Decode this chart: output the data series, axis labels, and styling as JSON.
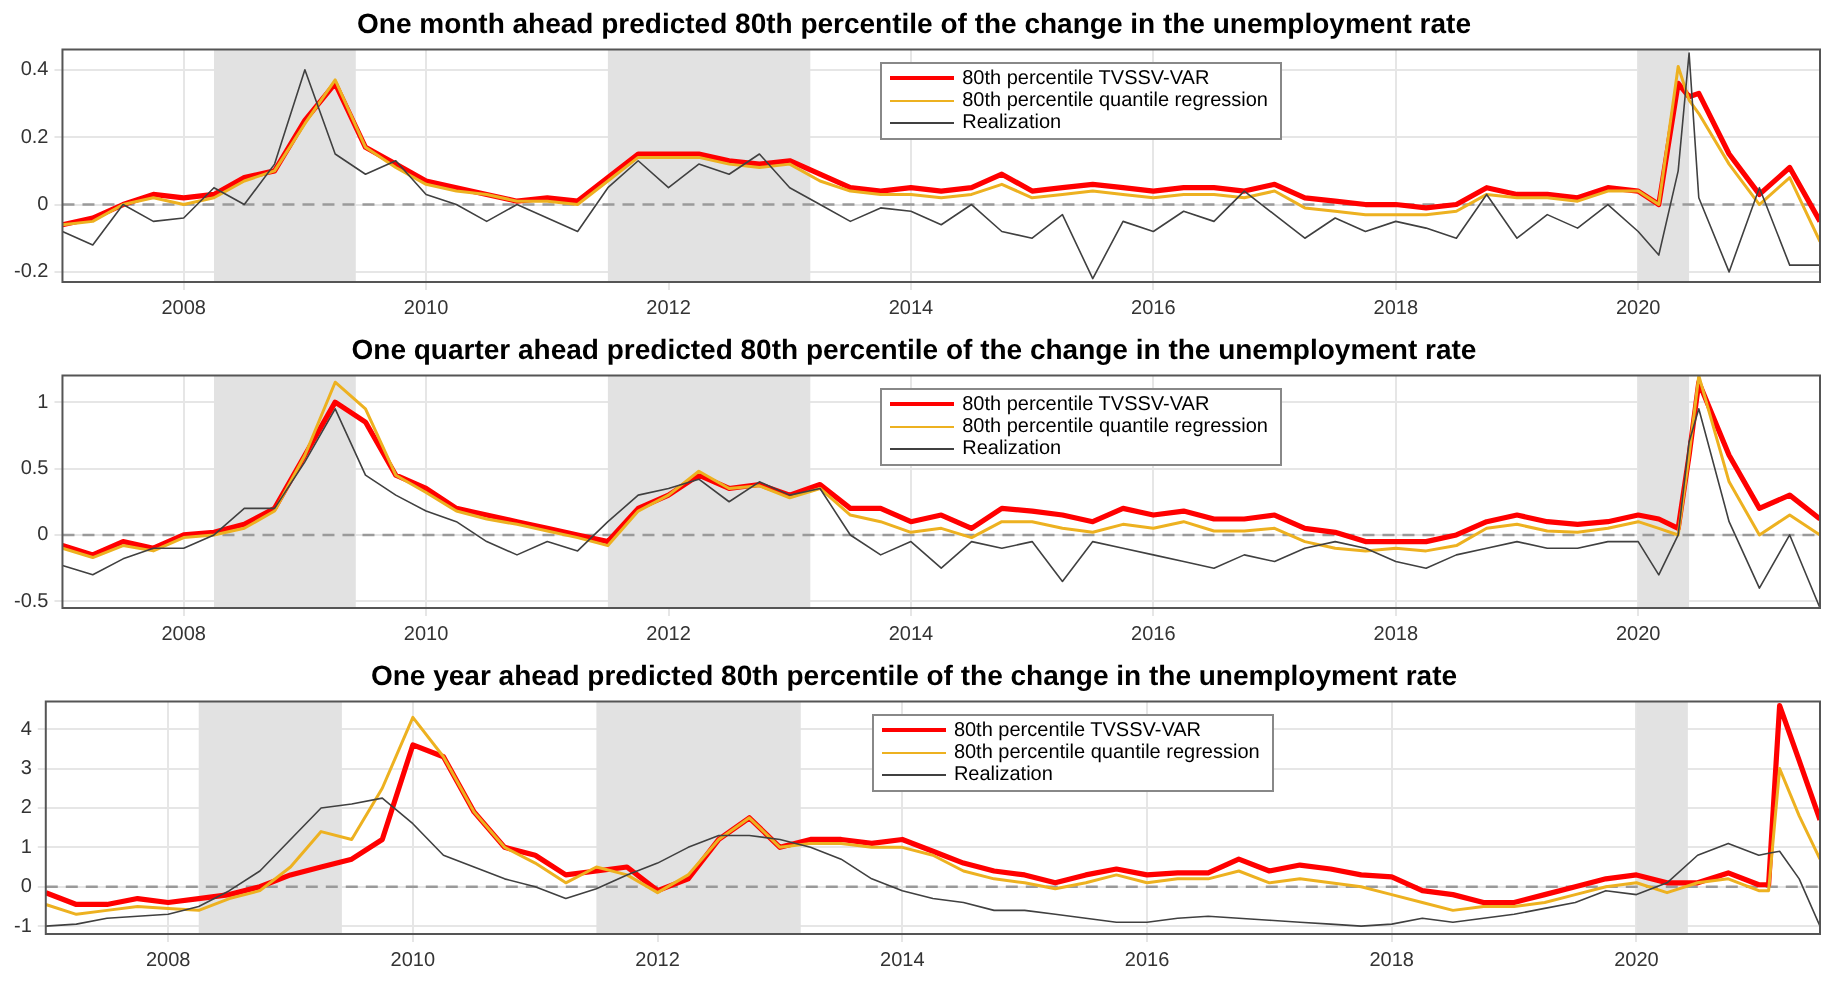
{
  "chart_data": [
    {
      "type": "line",
      "title": "One month ahead predicted 80th percentile of the change in the unemployment rate",
      "x": [
        2007,
        2007.25,
        2007.5,
        2007.75,
        2008,
        2008.25,
        2008.5,
        2008.75,
        2009,
        2009.25,
        2009.5,
        2009.75,
        2010,
        2010.25,
        2010.5,
        2010.75,
        2011,
        2011.25,
        2011.5,
        2011.75,
        2012,
        2012.25,
        2012.5,
        2012.75,
        2013,
        2013.25,
        2013.5,
        2013.75,
        2014,
        2014.25,
        2014.5,
        2014.75,
        2015,
        2015.25,
        2015.5,
        2015.75,
        2016,
        2016.25,
        2016.5,
        2016.75,
        2017,
        2017.25,
        2017.5,
        2017.75,
        2018,
        2018.25,
        2018.5,
        2018.75,
        2019,
        2019.25,
        2019.5,
        2019.75,
        2020,
        2020.17,
        2020.33,
        2020.42,
        2020.5,
        2020.75,
        2021,
        2021.25,
        2021.5
      ],
      "xlim": [
        2007,
        2021.5
      ],
      "xticks": [
        2008,
        2010,
        2012,
        2014,
        2016,
        2018,
        2020
      ],
      "ylim": [
        -0.23,
        0.46
      ],
      "yticks": [
        -0.2,
        0,
        0.2,
        0.4
      ],
      "grid": true,
      "legend": "top",
      "bands": [
        {
          "axis": "x",
          "from": 2008.25,
          "to": 2009.42
        },
        {
          "axis": "x",
          "from": 2011.5,
          "to": 2013.17
        },
        {
          "axis": "x",
          "from": 2020,
          "to": 2020.42
        }
      ],
      "ref_lines": [
        {
          "axis": "y",
          "value": 0,
          "line_style": "dashed"
        }
      ],
      "series": [
        {
          "name": "80th percentile TVSSV-VAR",
          "color": "#ff0000",
          "values": [
            -0.06,
            -0.04,
            0,
            0.03,
            0.02,
            0.03,
            0.08,
            0.1,
            0.25,
            0.36,
            0.17,
            0.12,
            0.07,
            0.05,
            0.03,
            0.01,
            0.02,
            0.01,
            0.08,
            0.15,
            0.15,
            0.15,
            0.13,
            0.12,
            0.13,
            0.09,
            0.05,
            0.04,
            0.05,
            0.04,
            0.05,
            0.09,
            0.04,
            0.05,
            0.06,
            0.05,
            0.04,
            0.05,
            0.05,
            0.04,
            0.06,
            0.02,
            0.01,
            0,
            0,
            -0.01,
            0,
            0.05,
            0.03,
            0.03,
            0.02,
            0.05,
            0.04,
            0,
            0.36,
            0.32,
            0.33,
            0.15,
            0.03,
            0.11,
            -0.05
          ]
        },
        {
          "name": "80th percentile quantile regression",
          "color": "#edb120",
          "values": [
            -0.06,
            -0.05,
            0,
            0.02,
            0,
            0.02,
            0.07,
            0.1,
            0.24,
            0.37,
            0.17,
            0.11,
            0.06,
            0.04,
            0.03,
            0.01,
            0.01,
            0,
            0.07,
            0.14,
            0.14,
            0.14,
            0.12,
            0.11,
            0.12,
            0.07,
            0.04,
            0.03,
            0.03,
            0.02,
            0.03,
            0.06,
            0.02,
            0.03,
            0.04,
            0.03,
            0.02,
            0.03,
            0.03,
            0.02,
            0.04,
            -0.01,
            -0.02,
            -0.03,
            -0.03,
            -0.03,
            -0.02,
            0.03,
            0.02,
            0.02,
            0.01,
            0.04,
            0.04,
            0,
            0.41,
            0.31,
            0.27,
            0.12,
            0,
            0.08,
            -0.11
          ]
        },
        {
          "name": "Realization",
          "color": "#404040",
          "values": [
            -0.08,
            -0.12,
            0,
            -0.05,
            -0.04,
            0.05,
            0,
            0.12,
            0.4,
            0.15,
            0.09,
            0.13,
            0.03,
            0,
            -0.05,
            0,
            -0.04,
            -0.08,
            0.05,
            0.13,
            0.05,
            0.12,
            0.09,
            0.15,
            0.05,
            0,
            -0.05,
            -0.01,
            -0.02,
            -0.06,
            0,
            -0.08,
            -0.1,
            -0.03,
            -0.22,
            -0.05,
            -0.08,
            -0.02,
            -0.05,
            0.04,
            -0.03,
            -0.1,
            -0.04,
            -0.08,
            -0.05,
            -0.07,
            -0.1,
            0.03,
            -0.1,
            -0.03,
            -0.07,
            0,
            -0.08,
            -0.15,
            0.1,
            0.45,
            0.02,
            -0.2,
            0.05,
            -0.18,
            -0.18
          ]
        }
      ]
    },
    {
      "type": "line",
      "title": "One quarter ahead predicted 80th percentile of the change in the unemployment rate",
      "x": [
        2007,
        2007.25,
        2007.5,
        2007.75,
        2008,
        2008.25,
        2008.5,
        2008.75,
        2009,
        2009.25,
        2009.5,
        2009.75,
        2010,
        2010.25,
        2010.5,
        2010.75,
        2011,
        2011.25,
        2011.5,
        2011.75,
        2012,
        2012.25,
        2012.5,
        2012.75,
        2013,
        2013.25,
        2013.5,
        2013.75,
        2014,
        2014.25,
        2014.5,
        2014.75,
        2015,
        2015.25,
        2015.5,
        2015.75,
        2016,
        2016.25,
        2016.5,
        2016.75,
        2017,
        2017.25,
        2017.5,
        2017.75,
        2018,
        2018.25,
        2018.5,
        2018.75,
        2019,
        2019.25,
        2019.5,
        2019.75,
        2020,
        2020.17,
        2020.33,
        2020.42,
        2020.5,
        2020.75,
        2021,
        2021.25,
        2021.5
      ],
      "xlim": [
        2007,
        2021.5
      ],
      "xticks": [
        2008,
        2010,
        2012,
        2014,
        2016,
        2018,
        2020
      ],
      "ylim": [
        -0.55,
        1.2
      ],
      "yticks": [
        -0.5,
        0,
        0.5,
        1
      ],
      "grid": true,
      "legend": "top",
      "bands": [
        {
          "axis": "x",
          "from": 2008.25,
          "to": 2009.42
        },
        {
          "axis": "x",
          "from": 2011.5,
          "to": 2013.17
        },
        {
          "axis": "x",
          "from": 2020,
          "to": 2020.42
        }
      ],
      "ref_lines": [
        {
          "axis": "y",
          "value": 0,
          "line_style": "dashed"
        }
      ],
      "series": [
        {
          "name": "80th percentile TVSSV-VAR",
          "color": "#ff0000",
          "values": [
            -0.08,
            -0.15,
            -0.05,
            -0.1,
            0,
            0.02,
            0.08,
            0.2,
            0.6,
            1,
            0.85,
            0.45,
            0.35,
            0.2,
            0.15,
            0.1,
            0.05,
            0,
            -0.05,
            0.2,
            0.3,
            0.45,
            0.35,
            0.38,
            0.3,
            0.38,
            0.2,
            0.2,
            0.1,
            0.15,
            0.05,
            0.2,
            0.18,
            0.15,
            0.1,
            0.2,
            0.15,
            0.18,
            0.12,
            0.12,
            0.15,
            0.05,
            0.02,
            -0.05,
            -0.05,
            -0.05,
            0,
            0.1,
            0.15,
            0.1,
            0.08,
            0.1,
            0.15,
            0.12,
            0.05,
            0.6,
            1.15,
            0.6,
            0.2,
            0.3,
            0.12
          ]
        },
        {
          "name": "80th percentile quantile regression",
          "color": "#edb120",
          "values": [
            -0.1,
            -0.17,
            -0.08,
            -0.12,
            -0.02,
            0,
            0.05,
            0.18,
            0.6,
            1.15,
            0.95,
            0.45,
            0.32,
            0.18,
            0.12,
            0.08,
            0.03,
            -0.02,
            -0.08,
            0.18,
            0.3,
            0.48,
            0.35,
            0.37,
            0.28,
            0.35,
            0.15,
            0.1,
            0.02,
            0.05,
            -0.02,
            0.1,
            0.1,
            0.05,
            0.02,
            0.08,
            0.05,
            0.1,
            0.03,
            0.03,
            0.05,
            -0.05,
            -0.1,
            -0.12,
            -0.1,
            -0.12,
            -0.08,
            0.05,
            0.08,
            0.03,
            0.02,
            0.05,
            0.1,
            0.05,
            0,
            0.6,
            1.2,
            0.4,
            0,
            0.15,
            0
          ]
        },
        {
          "name": "Realization",
          "color": "#404040",
          "values": [
            -0.23,
            -0.3,
            -0.18,
            -0.1,
            -0.1,
            0,
            0.2,
            0.2,
            0.55,
            0.95,
            0.45,
            0.3,
            0.18,
            0.1,
            -0.05,
            -0.15,
            -0.05,
            -0.12,
            0.1,
            0.3,
            0.35,
            0.42,
            0.25,
            0.4,
            0.3,
            0.35,
            0,
            -0.15,
            -0.05,
            -0.25,
            -0.05,
            -0.1,
            -0.05,
            -0.35,
            -0.05,
            -0.1,
            -0.15,
            -0.2,
            -0.25,
            -0.15,
            -0.2,
            -0.1,
            -0.05,
            -0.1,
            -0.2,
            -0.25,
            -0.15,
            -0.1,
            -0.05,
            -0.1,
            -0.1,
            -0.05,
            -0.05,
            -0.3,
            0,
            0.7,
            0.95,
            0.1,
            -0.4,
            0,
            -0.55
          ]
        }
      ]
    },
    {
      "type": "line",
      "title": "One year ahead predicted 80th percentile of the change in the unemployment rate",
      "x": [
        2007,
        2007.25,
        2007.5,
        2007.75,
        2008,
        2008.25,
        2008.5,
        2008.75,
        2009,
        2009.25,
        2009.5,
        2009.75,
        2010,
        2010.25,
        2010.5,
        2010.75,
        2011,
        2011.25,
        2011.5,
        2011.75,
        2012,
        2012.25,
        2012.5,
        2012.75,
        2013,
        2013.25,
        2013.5,
        2013.75,
        2014,
        2014.25,
        2014.5,
        2014.75,
        2015,
        2015.25,
        2015.5,
        2015.75,
        2016,
        2016.25,
        2016.5,
        2016.75,
        2017,
        2017.25,
        2017.5,
        2017.75,
        2018,
        2018.25,
        2018.5,
        2018.75,
        2019,
        2019.25,
        2019.5,
        2019.75,
        2020,
        2020.25,
        2020.5,
        2020.75,
        2021,
        2021.08,
        2021.17,
        2021.33,
        2021.5
      ],
      "xlim": [
        2007,
        2021.5
      ],
      "xticks": [
        2008,
        2010,
        2012,
        2014,
        2016,
        2018,
        2020
      ],
      "ylim": [
        -1.2,
        4.7
      ],
      "yticks": [
        -1,
        0,
        1,
        2,
        3,
        4
      ],
      "grid": true,
      "legend": "top",
      "bands": [
        {
          "axis": "x",
          "from": 2008.25,
          "to": 2009.42
        },
        {
          "axis": "x",
          "from": 2011.5,
          "to": 2013.17
        },
        {
          "axis": "x",
          "from": 2020,
          "to": 2020.42
        }
      ],
      "ref_lines": [
        {
          "axis": "y",
          "value": 0,
          "line_style": "dashed"
        }
      ],
      "series": [
        {
          "name": "80th percentile TVSSV-VAR",
          "color": "#ff0000",
          "values": [
            -0.15,
            -0.45,
            -0.45,
            -0.3,
            -0.4,
            -0.3,
            -0.2,
            0,
            0.3,
            0.5,
            0.7,
            1.2,
            3.6,
            3.3,
            1.9,
            1,
            0.8,
            0.3,
            0.4,
            0.5,
            -0.1,
            0.2,
            1.2,
            1.75,
            1,
            1.2,
            1.2,
            1.1,
            1.2,
            0.9,
            0.6,
            0.4,
            0.3,
            0.1,
            0.3,
            0.45,
            0.3,
            0.35,
            0.35,
            0.7,
            0.4,
            0.55,
            0.45,
            0.3,
            0.25,
            -0.1,
            -0.2,
            -0.4,
            -0.4,
            -0.2,
            0,
            0.2,
            0.3,
            0.1,
            0.1,
            0.35,
            0.05,
            0.05,
            4.6,
            3.2,
            1.7
          ]
        },
        {
          "name": "80th percentile quantile regression",
          "color": "#edb120",
          "values": [
            -0.45,
            -0.7,
            -0.6,
            -0.5,
            -0.55,
            -0.6,
            -0.3,
            -0.1,
            0.5,
            1.4,
            1.2,
            2.5,
            4.3,
            3.3,
            1.9,
            1,
            0.6,
            0.1,
            0.5,
            0.3,
            -0.15,
            0.3,
            1.2,
            1.75,
            1,
            1.1,
            1.1,
            1,
            1,
            0.8,
            0.4,
            0.2,
            0.1,
            -0.05,
            0.1,
            0.3,
            0.1,
            0.2,
            0.2,
            0.4,
            0.1,
            0.2,
            0.1,
            0,
            -0.2,
            -0.4,
            -0.6,
            -0.5,
            -0.5,
            -0.4,
            -0.2,
            0,
            0.1,
            -0.15,
            0.1,
            0.2,
            -0.1,
            -0.1,
            3,
            1.8,
            0.7
          ]
        },
        {
          "name": "Realization",
          "color": "#404040",
          "values": [
            -1,
            -0.95,
            -0.8,
            -0.75,
            -0.7,
            -0.5,
            -0.1,
            0.4,
            1.2,
            2,
            2.1,
            2.25,
            1.6,
            0.8,
            0.5,
            0.2,
            0,
            -0.3,
            -0.05,
            0.3,
            0.6,
            1,
            1.3,
            1.3,
            1.2,
            1,
            0.7,
            0.2,
            -0.1,
            -0.3,
            -0.4,
            -0.6,
            -0.6,
            -0.7,
            -0.8,
            -0.9,
            -0.9,
            -0.8,
            -0.75,
            -0.8,
            -0.85,
            -0.9,
            -0.95,
            -1,
            -0.95,
            -0.8,
            -0.9,
            -0.8,
            -0.7,
            -0.55,
            -0.4,
            -0.1,
            -0.2,
            0.1,
            0.8,
            1.1,
            0.8,
            0.85,
            0.9,
            0.2,
            -1
          ]
        }
      ]
    }
  ]
}
